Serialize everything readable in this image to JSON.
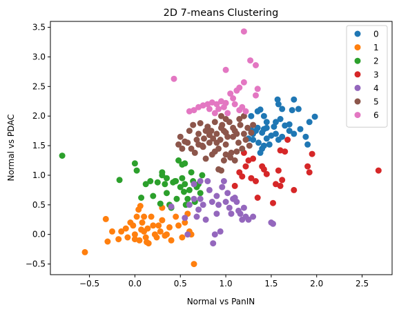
{
  "chart_data": {
    "type": "scatter",
    "title": "2D 7-means Clustering",
    "xlabel": "Normal vs PanIN",
    "ylabel": "Normal vs PDAC",
    "xlim": [
      -0.93,
      2.83
    ],
    "ylim": [
      -0.68,
      3.6
    ],
    "xticks": [
      -0.5,
      0.0,
      0.5,
      1.0,
      1.5,
      2.0,
      2.5
    ],
    "xtick_labels": [
      "−0.5",
      "0.0",
      "0.5",
      "1.0",
      "1.5",
      "2.0",
      "2.5"
    ],
    "yticks": [
      -0.5,
      0.0,
      0.5,
      1.0,
      1.5,
      2.0,
      2.5,
      3.0,
      3.5
    ],
    "ytick_labels": [
      "−0.5",
      "0.0",
      "0.5",
      "1.0",
      "1.5",
      "2.0",
      "2.5",
      "3.0",
      "3.5"
    ],
    "grid": false,
    "legend_position": "top-right",
    "series": [
      {
        "name": "0",
        "color": "#1f77b4",
        "points": [
          [
            1.57,
            2.28
          ],
          [
            1.58,
            2.2
          ],
          [
            1.62,
            2.12
          ],
          [
            1.73,
            2.1
          ],
          [
            1.75,
            2.28
          ],
          [
            1.8,
            2.12
          ],
          [
            1.98,
            1.99
          ],
          [
            1.7,
            1.86
          ],
          [
            1.6,
            1.95
          ],
          [
            1.65,
            1.84
          ],
          [
            1.53,
            1.82
          ],
          [
            1.45,
            1.8
          ],
          [
            1.42,
            1.78
          ],
          [
            1.35,
            1.8
          ],
          [
            1.38,
            2.11
          ],
          [
            1.42,
            2.0
          ],
          [
            1.33,
            1.75
          ],
          [
            1.3,
            1.7
          ],
          [
            1.28,
            1.76
          ],
          [
            1.4,
            1.72
          ],
          [
            1.5,
            1.67
          ],
          [
            1.55,
            1.7
          ],
          [
            1.58,
            1.6
          ],
          [
            1.62,
            1.65
          ],
          [
            1.7,
            1.75
          ],
          [
            1.82,
            1.78
          ],
          [
            1.92,
            1.9
          ],
          [
            1.88,
            1.65
          ],
          [
            1.9,
            1.52
          ],
          [
            1.75,
            1.7
          ],
          [
            1.45,
            1.62
          ],
          [
            1.48,
            1.52
          ],
          [
            1.4,
            1.45
          ],
          [
            1.36,
            1.55
          ],
          [
            1.3,
            1.6
          ],
          [
            1.25,
            1.62
          ],
          [
            1.35,
            2.08
          ],
          [
            1.28,
            2.0
          ],
          [
            1.45,
            1.9
          ],
          [
            1.55,
            1.9
          ],
          [
            1.38,
            1.38
          ],
          [
            1.42,
            1.5
          ]
        ]
      },
      {
        "name": "1",
        "color": "#ff7f0e",
        "points": [
          [
            -0.55,
            -0.3
          ],
          [
            -0.32,
            0.26
          ],
          [
            -0.3,
            -0.12
          ],
          [
            -0.25,
            0.05
          ],
          [
            -0.18,
            -0.08
          ],
          [
            -0.1,
            0.1
          ],
          [
            -0.05,
            0.2
          ],
          [
            0.0,
            0.0
          ],
          [
            0.02,
            0.3
          ],
          [
            0.04,
            0.42
          ],
          [
            0.06,
            0.48
          ],
          [
            0.08,
            0.2
          ],
          [
            0.1,
            0.3
          ],
          [
            0.12,
            -0.05
          ],
          [
            0.14,
            0.1
          ],
          [
            0.15,
            -0.15
          ],
          [
            0.0,
            -0.08
          ],
          [
            -0.02,
            0.15
          ],
          [
            0.05,
            -0.1
          ],
          [
            0.18,
            0.3
          ],
          [
            0.2,
            0.15
          ],
          [
            0.22,
            0.0
          ],
          [
            0.24,
            -0.05
          ],
          [
            0.26,
            0.15
          ],
          [
            0.28,
            0.05
          ],
          [
            0.3,
            0.24
          ],
          [
            0.33,
            -0.02
          ],
          [
            0.35,
            0.0
          ],
          [
            0.38,
            0.12
          ],
          [
            0.4,
            -0.1
          ],
          [
            0.45,
            0.3
          ],
          [
            0.48,
            0.15
          ],
          [
            0.52,
            -0.05
          ],
          [
            0.55,
            0.2
          ],
          [
            0.58,
            0.35
          ],
          [
            0.6,
            0.05
          ],
          [
            0.62,
            0.0
          ],
          [
            0.65,
            -0.5
          ],
          [
            0.3,
            0.45
          ],
          [
            -0.08,
            -0.05
          ],
          [
            0.1,
            0.05
          ],
          [
            -0.15,
            0.05
          ],
          [
            0.07,
            0.08
          ],
          [
            0.13,
            -0.13
          ]
        ]
      },
      {
        "name": "2",
        "color": "#2ca02c",
        "points": [
          [
            -0.8,
            1.33
          ],
          [
            -0.17,
            0.92
          ],
          [
            0.0,
            1.2
          ],
          [
            0.02,
            1.08
          ],
          [
            0.07,
            0.62
          ],
          [
            0.12,
            0.85
          ],
          [
            0.17,
            0.9
          ],
          [
            0.2,
            0.65
          ],
          [
            0.25,
            0.88
          ],
          [
            0.28,
            0.52
          ],
          [
            0.3,
            1.0
          ],
          [
            0.3,
            1.05
          ],
          [
            0.33,
            0.85
          ],
          [
            0.35,
            0.7
          ],
          [
            0.38,
            0.5
          ],
          [
            0.4,
            0.45
          ],
          [
            0.42,
            0.88
          ],
          [
            0.44,
            0.9
          ],
          [
            0.46,
            0.6
          ],
          [
            0.48,
            1.25
          ],
          [
            0.5,
            0.8
          ],
          [
            0.52,
            0.95
          ],
          [
            0.54,
            0.72
          ],
          [
            0.55,
            0.85
          ],
          [
            0.56,
            0.5
          ],
          [
            0.58,
            0.6
          ],
          [
            0.6,
            0.75
          ],
          [
            0.62,
            1.05
          ],
          [
            0.64,
            0.9
          ],
          [
            0.66,
            0.55
          ],
          [
            0.68,
            0.8
          ],
          [
            0.7,
            0.85
          ],
          [
            0.72,
            0.7
          ],
          [
            0.74,
            1.0
          ],
          [
            0.52,
            1.18
          ],
          [
            0.55,
            1.2
          ],
          [
            0.45,
            0.9
          ],
          [
            0.35,
            0.95
          ]
        ]
      },
      {
        "name": "3",
        "color": "#d62728",
        "points": [
          [
            2.68,
            1.08
          ],
          [
            1.95,
            1.36
          ],
          [
            1.92,
            1.05
          ],
          [
            1.9,
            1.15
          ],
          [
            1.75,
            0.75
          ],
          [
            1.68,
            1.6
          ],
          [
            1.65,
            1.4
          ],
          [
            1.62,
            0.92
          ],
          [
            1.6,
            1.42
          ],
          [
            1.58,
            1.08
          ],
          [
            1.55,
            0.85
          ],
          [
            1.52,
            0.53
          ],
          [
            1.42,
            1.1
          ],
          [
            1.4,
            1.15
          ],
          [
            1.35,
            0.62
          ],
          [
            1.3,
            1.28
          ],
          [
            1.28,
            0.95
          ],
          [
            1.25,
            1.25
          ],
          [
            1.22,
            1.15
          ],
          [
            1.2,
            1.38
          ],
          [
            1.18,
            0.98
          ],
          [
            1.15,
            1.05
          ],
          [
            1.1,
            0.82
          ],
          [
            1.6,
            0.82
          ],
          [
            1.45,
            1.02
          ],
          [
            1.33,
            0.9
          ]
        ]
      },
      {
        "name": "4",
        "color": "#9467bd",
        "points": [
          [
            0.55,
            0.28
          ],
          [
            0.58,
            0.0
          ],
          [
            0.6,
            0.5
          ],
          [
            0.65,
            0.6
          ],
          [
            0.68,
            0.3
          ],
          [
            0.7,
            0.42
          ],
          [
            0.72,
            0.6
          ],
          [
            0.75,
            0.5
          ],
          [
            0.78,
            0.25
          ],
          [
            0.8,
            0.9
          ],
          [
            0.82,
            0.75
          ],
          [
            0.85,
            0.55
          ],
          [
            0.86,
            -0.15
          ],
          [
            0.88,
            0.0
          ],
          [
            0.9,
            0.35
          ],
          [
            0.92,
            0.5
          ],
          [
            0.94,
            0.05
          ],
          [
            0.96,
            0.8
          ],
          [
            0.98,
            0.9
          ],
          [
            1.0,
            0.55
          ],
          [
            1.02,
            0.7
          ],
          [
            1.04,
            0.45
          ],
          [
            1.06,
            0.35
          ],
          [
            1.08,
            0.6
          ],
          [
            1.1,
            0.62
          ],
          [
            1.12,
            0.55
          ],
          [
            1.14,
            0.4
          ],
          [
            1.16,
            0.35
          ],
          [
            1.18,
            0.25
          ],
          [
            1.2,
            0.45
          ],
          [
            1.22,
            0.3
          ],
          [
            1.25,
            0.25
          ],
          [
            1.3,
            0.3
          ],
          [
            1.5,
            0.2
          ],
          [
            1.52,
            0.18
          ],
          [
            0.65,
            0.85
          ],
          [
            0.72,
            0.9
          ],
          [
            0.4,
            0.47
          ],
          [
            0.9,
            0.65
          ]
        ]
      },
      {
        "name": "5",
        "color": "#8c564b",
        "points": [
          [
            0.5,
            1.65
          ],
          [
            0.48,
            1.52
          ],
          [
            0.52,
            1.45
          ],
          [
            0.55,
            1.57
          ],
          [
            0.58,
            1.55
          ],
          [
            0.6,
            1.75
          ],
          [
            0.62,
            1.45
          ],
          [
            0.64,
            1.85
          ],
          [
            0.66,
            1.38
          ],
          [
            0.68,
            1.6
          ],
          [
            0.7,
            1.7
          ],
          [
            0.72,
            1.88
          ],
          [
            0.74,
            1.5
          ],
          [
            0.76,
            1.62
          ],
          [
            0.78,
            1.28
          ],
          [
            0.8,
            1.82
          ],
          [
            0.82,
            1.55
          ],
          [
            0.84,
            1.75
          ],
          [
            0.86,
            1.62
          ],
          [
            0.88,
            1.9
          ],
          [
            0.9,
            1.7
          ],
          [
            0.92,
            1.45
          ],
          [
            0.94,
            1.6
          ],
          [
            0.96,
            1.85
          ],
          [
            0.98,
            1.75
          ],
          [
            1.0,
            1.52
          ],
          [
            1.02,
            1.65
          ],
          [
            1.04,
            1.9
          ],
          [
            1.06,
            1.38
          ],
          [
            1.08,
            1.65
          ],
          [
            1.1,
            1.75
          ],
          [
            1.12,
            1.4
          ],
          [
            1.14,
            1.55
          ],
          [
            1.16,
            1.85
          ],
          [
            1.18,
            1.45
          ],
          [
            1.2,
            1.7
          ],
          [
            1.22,
            1.6
          ],
          [
            1.24,
            1.8
          ],
          [
            1.26,
            1.5
          ],
          [
            1.28,
            1.72
          ],
          [
            1.3,
            1.85
          ],
          [
            1.2,
            2.0
          ],
          [
            1.15,
            1.95
          ],
          [
            1.0,
            1.95
          ],
          [
            0.95,
            2.0
          ],
          [
            0.92,
            1.1
          ],
          [
            0.95,
            1.08
          ],
          [
            0.98,
            1.25
          ],
          [
            0.75,
            1.48
          ],
          [
            0.7,
            1.52
          ],
          [
            0.85,
            1.35
          ],
          [
            0.88,
            1.4
          ],
          [
            1.0,
            1.35
          ],
          [
            1.05,
            1.3
          ],
          [
            1.1,
            1.25
          ],
          [
            1.0,
            1.72
          ],
          [
            0.95,
            1.8
          ],
          [
            0.82,
            1.68
          ],
          [
            0.78,
            1.75
          ],
          [
            0.9,
            1.55
          ],
          [
            1.08,
            1.8
          ],
          [
            1.12,
            1.7
          ]
        ]
      },
      {
        "name": "6",
        "color": "#e377c2",
        "points": [
          [
            1.2,
            3.43
          ],
          [
            1.27,
            2.94
          ],
          [
            1.33,
            2.86
          ],
          [
            1.0,
            2.78
          ],
          [
            0.43,
            2.63
          ],
          [
            1.2,
            2.57
          ],
          [
            1.15,
            2.48
          ],
          [
            1.12,
            2.43
          ],
          [
            1.35,
            2.46
          ],
          [
            1.33,
            2.35
          ],
          [
            1.05,
            2.38
          ],
          [
            1.08,
            2.3
          ],
          [
            1.0,
            2.22
          ],
          [
            0.95,
            2.25
          ],
          [
            0.92,
            2.12
          ],
          [
            0.9,
            2.2
          ],
          [
            0.85,
            2.23
          ],
          [
            0.8,
            2.2
          ],
          [
            0.75,
            2.18
          ],
          [
            0.7,
            2.15
          ],
          [
            0.65,
            2.1
          ],
          [
            0.6,
            2.08
          ],
          [
            0.88,
            2.05
          ],
          [
            0.98,
            2.15
          ],
          [
            1.02,
            2.05
          ],
          [
            1.1,
            2.2
          ],
          [
            1.15,
            2.1
          ],
          [
            1.18,
            2.15
          ],
          [
            1.22,
            2.08
          ],
          [
            0.82,
            2.12
          ]
        ]
      }
    ]
  }
}
